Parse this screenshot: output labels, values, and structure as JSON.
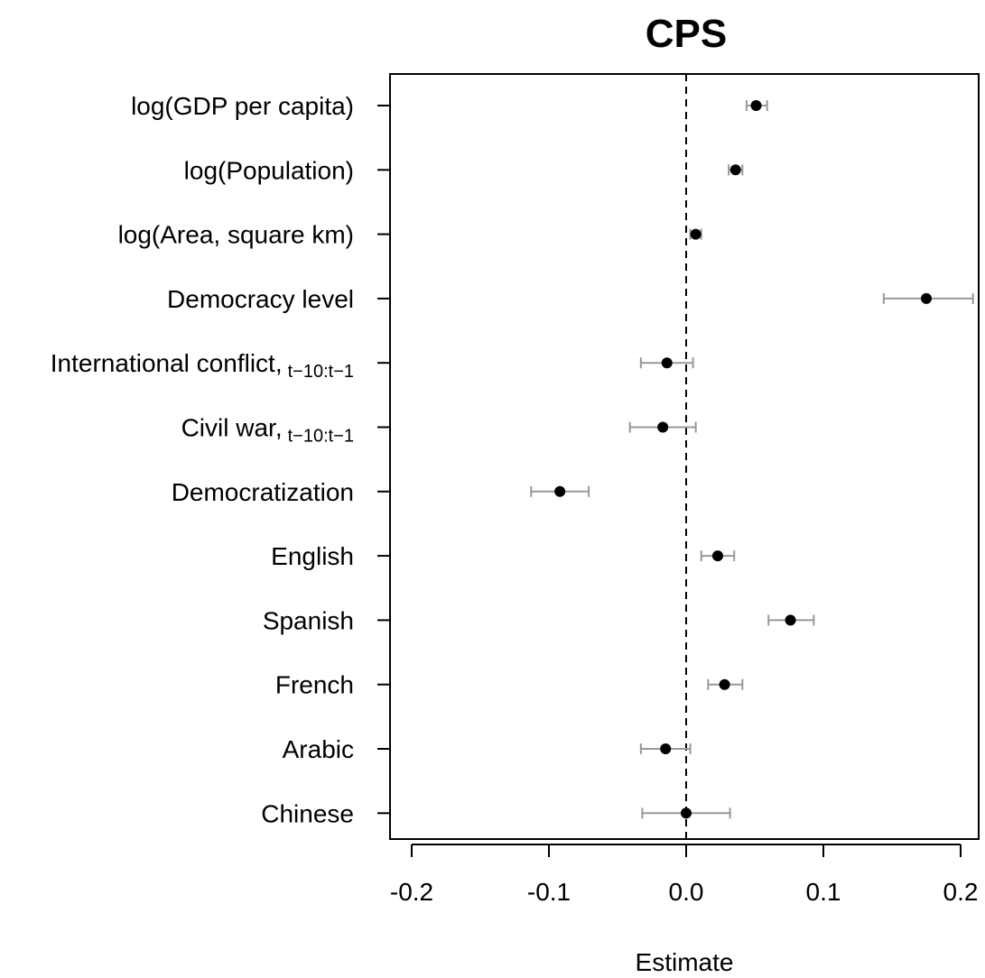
{
  "chart_data": {
    "type": "scatter",
    "subtype": "coefficient-plot",
    "title": "CPS",
    "xlabel": "Estimate",
    "ylabel": "",
    "xlim": [
      -0.21,
      0.21
    ],
    "xticks": [
      -0.2,
      -0.1,
      0.0,
      0.1,
      0.2
    ],
    "xtick_labels": [
      "-0.2",
      "-0.1",
      "0.0",
      "0.1",
      "0.2"
    ],
    "reference_line": 0.0,
    "grid": false,
    "legend": "none",
    "point_color": "#000000",
    "errorbar_color": "#999999",
    "rows": [
      {
        "label": "log(GDP per capita)",
        "sub": "",
        "estimate": 0.051,
        "lower": 0.044,
        "upper": 0.059
      },
      {
        "label": "log(Population)",
        "sub": "",
        "estimate": 0.036,
        "lower": 0.031,
        "upper": 0.041
      },
      {
        "label": "log(Area, square km)",
        "sub": "",
        "estimate": 0.007,
        "lower": 0.003,
        "upper": 0.011
      },
      {
        "label": "Democracy level",
        "sub": "",
        "estimate": 0.175,
        "lower": 0.144,
        "upper": 0.209
      },
      {
        "label": "International conflict,",
        "sub": "t−10:t−1",
        "estimate": -0.014,
        "lower": -0.033,
        "upper": 0.005
      },
      {
        "label": "Civil war,",
        "sub": "t−10:t−1",
        "estimate": -0.017,
        "lower": -0.041,
        "upper": 0.007
      },
      {
        "label": "Democratization",
        "sub": "",
        "estimate": -0.092,
        "lower": -0.113,
        "upper": -0.071
      },
      {
        "label": "English",
        "sub": "",
        "estimate": 0.023,
        "lower": 0.011,
        "upper": 0.035
      },
      {
        "label": "Spanish",
        "sub": "",
        "estimate": 0.076,
        "lower": 0.06,
        "upper": 0.093
      },
      {
        "label": "French",
        "sub": "",
        "estimate": 0.028,
        "lower": 0.016,
        "upper": 0.041
      },
      {
        "label": "Arabic",
        "sub": "",
        "estimate": -0.015,
        "lower": -0.033,
        "upper": 0.003
      },
      {
        "label": "Chinese",
        "sub": "",
        "estimate": 0.0,
        "lower": -0.032,
        "upper": 0.032
      }
    ]
  }
}
